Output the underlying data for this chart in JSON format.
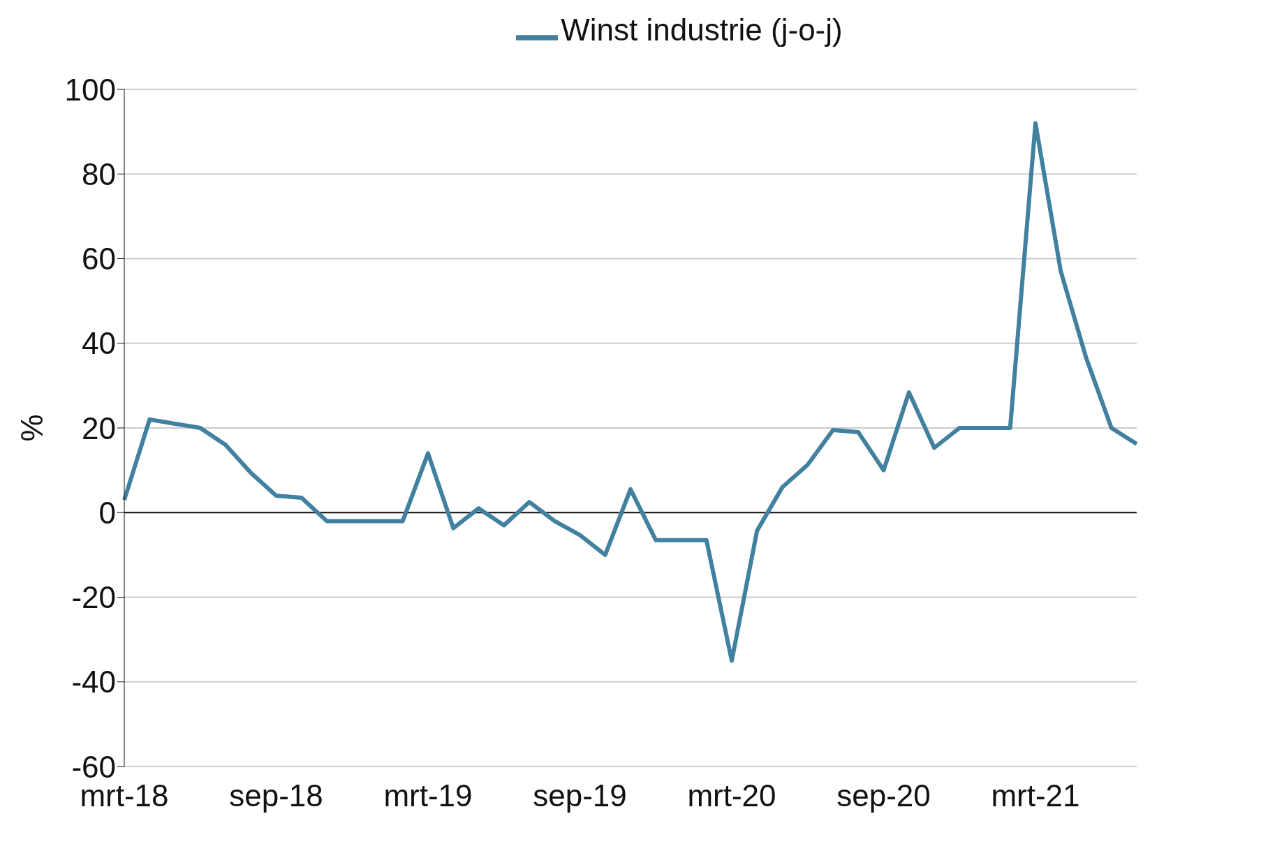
{
  "chart_data": {
    "type": "line",
    "ylabel": "%",
    "categories": [
      "mrt-18",
      null,
      null,
      null,
      null,
      null,
      "sep-18",
      null,
      null,
      null,
      null,
      null,
      "mrt-19",
      null,
      null,
      null,
      null,
      null,
      "sep-19",
      null,
      null,
      null,
      null,
      null,
      "mrt-20",
      null,
      null,
      null,
      null,
      null,
      "sep-20",
      null,
      null,
      null,
      null,
      null,
      "mrt-21",
      null,
      null,
      null,
      null
    ],
    "series": [
      {
        "name": "Winst industrie (j-o-j)",
        "color": "#41809f",
        "values": [
          3,
          22,
          21,
          20,
          16,
          9.4,
          4,
          3.5,
          -2,
          -2,
          -2,
          -2,
          14,
          -3.7,
          1,
          -3,
          2.5,
          -2,
          -5.3,
          -10,
          5.5,
          -6.5,
          -6.5,
          -6.5,
          -35,
          -4.3,
          6,
          11.3,
          19.5,
          19,
          10,
          28.4,
          15.3,
          20,
          20,
          20,
          92,
          57,
          36.6,
          20,
          16.2
        ]
      }
    ],
    "ylim": [
      -60,
      100
    ],
    "yticks": [
      -60,
      -40,
      -20,
      0,
      20,
      40,
      60,
      80,
      100
    ],
    "grid": "y",
    "legend": "top",
    "marker": "none",
    "line_style": "solid"
  }
}
